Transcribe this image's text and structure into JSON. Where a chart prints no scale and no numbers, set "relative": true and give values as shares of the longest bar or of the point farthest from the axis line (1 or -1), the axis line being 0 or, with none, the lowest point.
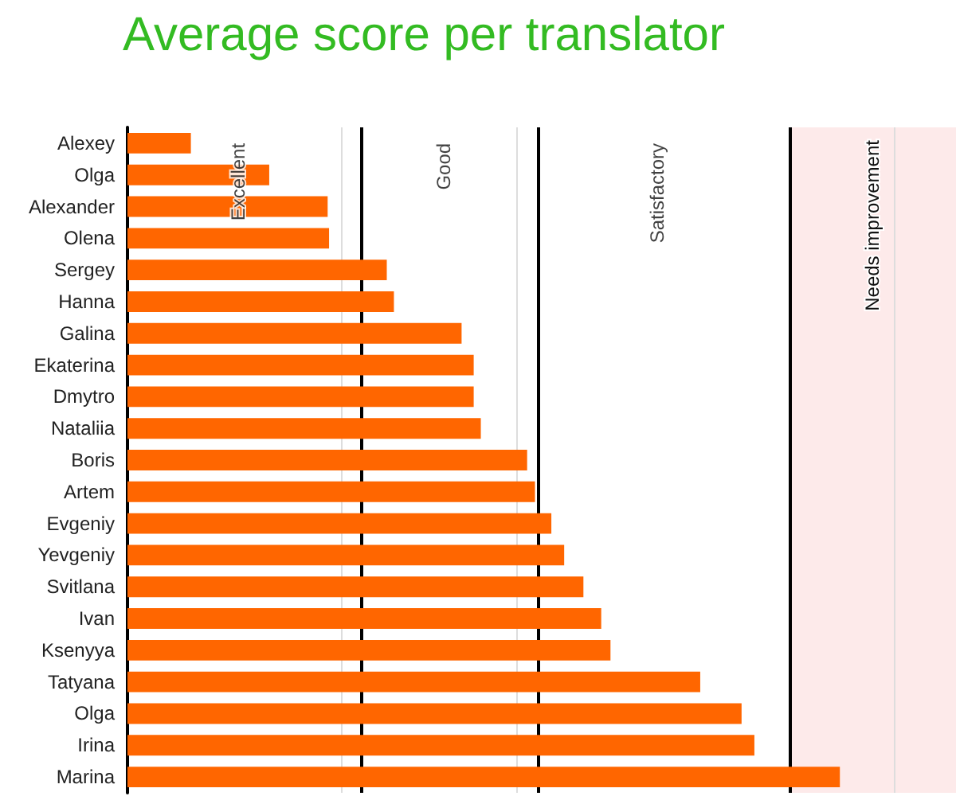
{
  "chart_data": {
    "type": "bar",
    "title": "Average score per translator",
    "orientation": "horizontal",
    "relative": true,
    "categories": [
      "Alexey",
      "Olga",
      "Alexander",
      "Olena",
      "Sergey",
      "Hanna",
      "Galina",
      "Ekaterina",
      "Dmytro",
      "Nataliia",
      "Boris",
      "Artem",
      "Evgeniy",
      "Yevgeniy",
      "Svitlana",
      "Ivan",
      "Ksenyya",
      "Tatyana",
      "Olga",
      "Irina",
      "Marina"
    ],
    "values": [
      0.089,
      0.199,
      0.281,
      0.283,
      0.364,
      0.374,
      0.469,
      0.486,
      0.486,
      0.496,
      0.561,
      0.572,
      0.595,
      0.613,
      0.64,
      0.665,
      0.678,
      0.804,
      0.862,
      0.88,
      1
    ],
    "color": "#ff6600",
    "annotations": [
      "Excellent",
      "Good",
      "Satisfactory"
    ],
    "bands": [
      {
        "axis": "x",
        "from": 0.929,
        "to": 1.163,
        "label": "Needs improvement",
        "color": "#fdeaea"
      }
    ],
    "ref_lines": [
      {
        "axis": "x",
        "value": 0.3,
        "color": "#dddddd"
      },
      {
        "axis": "x",
        "value": 0.546,
        "color": "#dddddd"
      },
      {
        "axis": "x",
        "value": 1.077,
        "color": "#dddddd"
      },
      {
        "axis": "x",
        "value": 0.329,
        "color": "#000000"
      },
      {
        "axis": "x",
        "value": 0.577,
        "color": "#000000"
      },
      {
        "axis": "x",
        "value": 0.929,
        "color": "#000000"
      }
    ]
  }
}
